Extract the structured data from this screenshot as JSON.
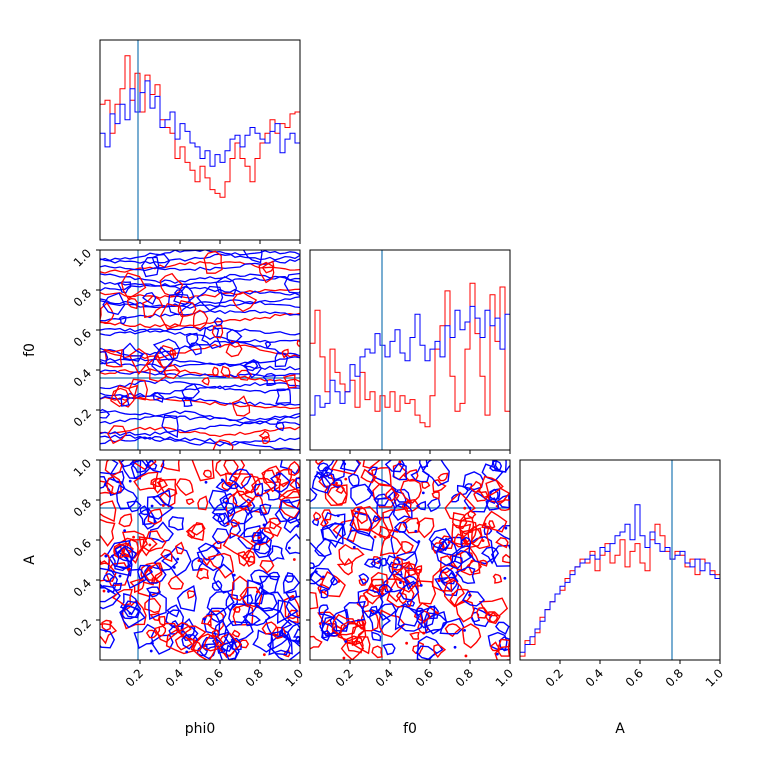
{
  "chart_data": {
    "type": "corner",
    "parameters": [
      "phi0",
      "f0",
      "A"
    ],
    "ticks": [
      0.2,
      0.4,
      0.6,
      0.8,
      1.0
    ],
    "tick_labels": [
      "0.2",
      "0.4",
      "0.6",
      "0.8",
      "1.0"
    ],
    "range": [
      0,
      1
    ],
    "truths": {
      "phi0": 0.19,
      "f0": 0.36,
      "A": 0.76
    },
    "series_colors": [
      "#ff0000",
      "#0000ff"
    ],
    "truth_color": "#1f77b4",
    "histograms": {
      "phi0": {
        "red": [
          0.7,
          0.72,
          0.55,
          0.7,
          0.78,
          0.95,
          0.72,
          0.86,
          0.66,
          0.85,
          0.75,
          0.8,
          0.62,
          0.58,
          0.55,
          0.42,
          0.48,
          0.4,
          0.36,
          0.3,
          0.38,
          0.32,
          0.26,
          0.24,
          0.22,
          0.3,
          0.42,
          0.5,
          0.42,
          0.38,
          0.3,
          0.42,
          0.5,
          0.55,
          0.62,
          0.55,
          0.6,
          0.58,
          0.65,
          0.66
        ],
        "blue": [
          0.55,
          0.48,
          0.65,
          0.6,
          0.7,
          0.62,
          0.78,
          0.66,
          0.76,
          0.82,
          0.68,
          0.74,
          0.58,
          0.62,
          0.66,
          0.52,
          0.6,
          0.56,
          0.5,
          0.48,
          0.42,
          0.46,
          0.38,
          0.44,
          0.4,
          0.46,
          0.52,
          0.54,
          0.48,
          0.54,
          0.58,
          0.55,
          0.52,
          0.5,
          0.56,
          0.6,
          0.45,
          0.52,
          0.55,
          0.5
        ]
      },
      "f0": {
        "red": [
          0.55,
          0.72,
          0.48,
          0.3,
          0.52,
          0.4,
          0.34,
          0.3,
          0.36,
          0.22,
          0.4,
          0.26,
          0.3,
          0.2,
          0.28,
          0.22,
          0.3,
          0.2,
          0.28,
          0.24,
          0.26,
          0.18,
          0.14,
          0.12,
          0.28,
          0.52,
          0.64,
          0.82,
          0.38,
          0.2,
          0.24,
          0.52,
          0.86,
          0.6,
          0.38,
          0.18,
          0.8,
          0.56,
          0.84,
          0.2
        ],
        "blue": [
          0.18,
          0.28,
          0.22,
          0.24,
          0.36,
          0.3,
          0.24,
          0.3,
          0.44,
          0.38,
          0.48,
          0.52,
          0.5,
          0.6,
          0.54,
          0.48,
          0.56,
          0.62,
          0.5,
          0.46,
          0.58,
          0.7,
          0.54,
          0.46,
          0.52,
          0.56,
          0.48,
          0.64,
          0.58,
          0.72,
          0.62,
          0.66,
          0.74,
          0.68,
          0.58,
          0.72,
          0.64,
          0.68,
          0.52,
          0.7
        ]
      },
      "A": {
        "red": [
          0.02,
          0.1,
          0.08,
          0.14,
          0.22,
          0.26,
          0.3,
          0.34,
          0.36,
          0.42,
          0.46,
          0.48,
          0.52,
          0.5,
          0.56,
          0.46,
          0.54,
          0.6,
          0.5,
          0.54,
          0.62,
          0.48,
          0.56,
          0.6,
          0.5,
          0.46,
          0.62,
          0.7,
          0.64,
          0.56,
          0.52,
          0.56,
          0.54,
          0.48,
          0.52,
          0.44,
          0.52,
          0.5,
          0.46,
          0.44
        ],
        "blue": [
          0.04,
          0.08,
          0.12,
          0.16,
          0.2,
          0.26,
          0.3,
          0.34,
          0.38,
          0.4,
          0.44,
          0.48,
          0.5,
          0.52,
          0.54,
          0.52,
          0.58,
          0.56,
          0.6,
          0.64,
          0.66,
          0.7,
          0.62,
          0.8,
          0.64,
          0.58,
          0.66,
          0.6,
          0.56,
          0.58,
          0.52,
          0.54,
          0.56,
          0.5,
          0.48,
          0.52,
          0.46,
          0.5,
          0.44,
          0.42
        ]
      }
    }
  },
  "labels": {
    "x_phi0": "phi0",
    "x_f0": "f0",
    "x_A": "A",
    "y_f0": "f0",
    "y_A": "A"
  }
}
